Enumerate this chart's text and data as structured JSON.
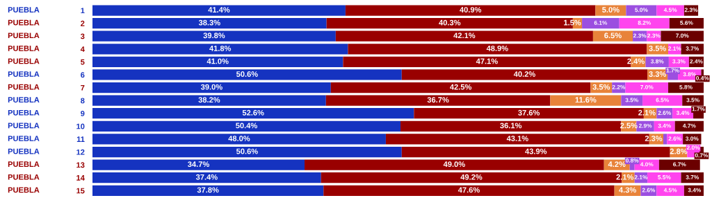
{
  "chart_data": {
    "type": "bar",
    "orientation": "horizontal",
    "stacked": true,
    "legend": false,
    "grid": false,
    "tick_labels": "y",
    "xlim": [
      0,
      100
    ],
    "categories": [
      "1",
      "2",
      "3",
      "4",
      "5",
      "6",
      "7",
      "8",
      "9",
      "10",
      "11",
      "12",
      "13",
      "14",
      "15"
    ],
    "annotations": [
      "PUEBLA",
      "PUEBLA",
      "PUEBLA",
      "PUEBLA",
      "PUEBLA",
      "PUEBLA",
      "PUEBLA",
      "PUEBLA",
      "PUEBLA",
      "PUEBLA",
      "PUEBLA",
      "PUEBLA",
      "PUEBLA",
      "PUEBLA",
      "PUEBLA"
    ],
    "series": [
      {
        "color": "#1533c0",
        "values": [
          41.4,
          38.3,
          39.8,
          41.8,
          41.0,
          50.6,
          39.0,
          38.2,
          52.6,
          50.4,
          48.0,
          50.6,
          34.7,
          37.4,
          37.8
        ],
        "value_labels": [
          "41.4%",
          "38.3%",
          "39.8%",
          "41.8%",
          "41.0%",
          "50.6%",
          "39.0%",
          "38.2%",
          "52.6%",
          "50.4%",
          "48.0%",
          "50.6%",
          "34.7%",
          "37.4%",
          "37.8%"
        ]
      },
      {
        "color": "#990000",
        "values": [
          40.9,
          40.3,
          42.1,
          48.9,
          47.1,
          40.2,
          42.5,
          36.7,
          37.6,
          36.1,
          43.1,
          43.9,
          49.0,
          49.2,
          47.6
        ],
        "value_labels": [
          "40.9%",
          "40.3%",
          "42.1%",
          "48.9%",
          "47.1%",
          "40.2%",
          "42.5%",
          "36.7%",
          "37.6%",
          "36.1%",
          "43.1%",
          "43.9%",
          "49.0%",
          "49.2%",
          "47.6%"
        ]
      },
      {
        "color": "#e8833a",
        "values": [
          5.0,
          1.5,
          6.5,
          3.5,
          2.4,
          3.3,
          3.5,
          11.6,
          2.1,
          2.5,
          2.3,
          2.8,
          4.2,
          2.1,
          4.3
        ],
        "value_labels": [
          "5.0%",
          "1.5%",
          "6.5%",
          "3.5%",
          "2.4%",
          "3.3%",
          "3.5%",
          "11.6%",
          "2.1%",
          "2.5%",
          "2.3%",
          "2.8%",
          "4.2%",
          "2.1%",
          "4.3%"
        ]
      },
      {
        "color": "#9b4fe0",
        "values": [
          5.0,
          6.1,
          2.3,
          null,
          3.8,
          1.7,
          2.2,
          3.5,
          2.6,
          2.9,
          0.6,
          null,
          0.8,
          2.1,
          2.6
        ],
        "value_labels": [
          "5.0%",
          "6.1%",
          "2.3%",
          null,
          "3.8%",
          "1.7%",
          "2.2%",
          "3.5%",
          "2.6%",
          "2.9%",
          null,
          null,
          "0.8%",
          "2.1%",
          "2.6%"
        ]
      },
      {
        "color": "#ff44ee",
        "values": [
          4.5,
          8.2,
          2.3,
          2.1,
          3.3,
          3.8,
          7.0,
          6.5,
          3.4,
          3.4,
          2.6,
          2.0,
          4.0,
          5.5,
          4.5
        ],
        "value_labels": [
          "4.5%",
          "8.2%",
          "2.3%",
          "2.1%",
          "3.3%",
          "3.8%",
          "7.0%",
          "6.5%",
          "3.4%",
          "3.4%",
          "2.6%",
          "2.0%",
          "4.0%",
          "5.5%",
          "4.5%"
        ]
      },
      {
        "color": "#6b0000",
        "values": [
          2.3,
          5.6,
          7.0,
          3.7,
          2.4,
          0.4,
          5.8,
          3.5,
          1.7,
          4.7,
          3.0,
          0.7,
          6.7,
          3.7,
          3.4
        ],
        "value_labels": [
          "2.3%",
          "5.6%",
          "7.0%",
          "3.7%",
          "2.4%",
          "0.4%",
          "5.8%",
          "3.5%",
          "1.7%",
          "4.7%",
          "3.0%",
          "0.7%",
          "6.7%",
          "3.7%",
          "3.4%"
        ]
      }
    ]
  }
}
